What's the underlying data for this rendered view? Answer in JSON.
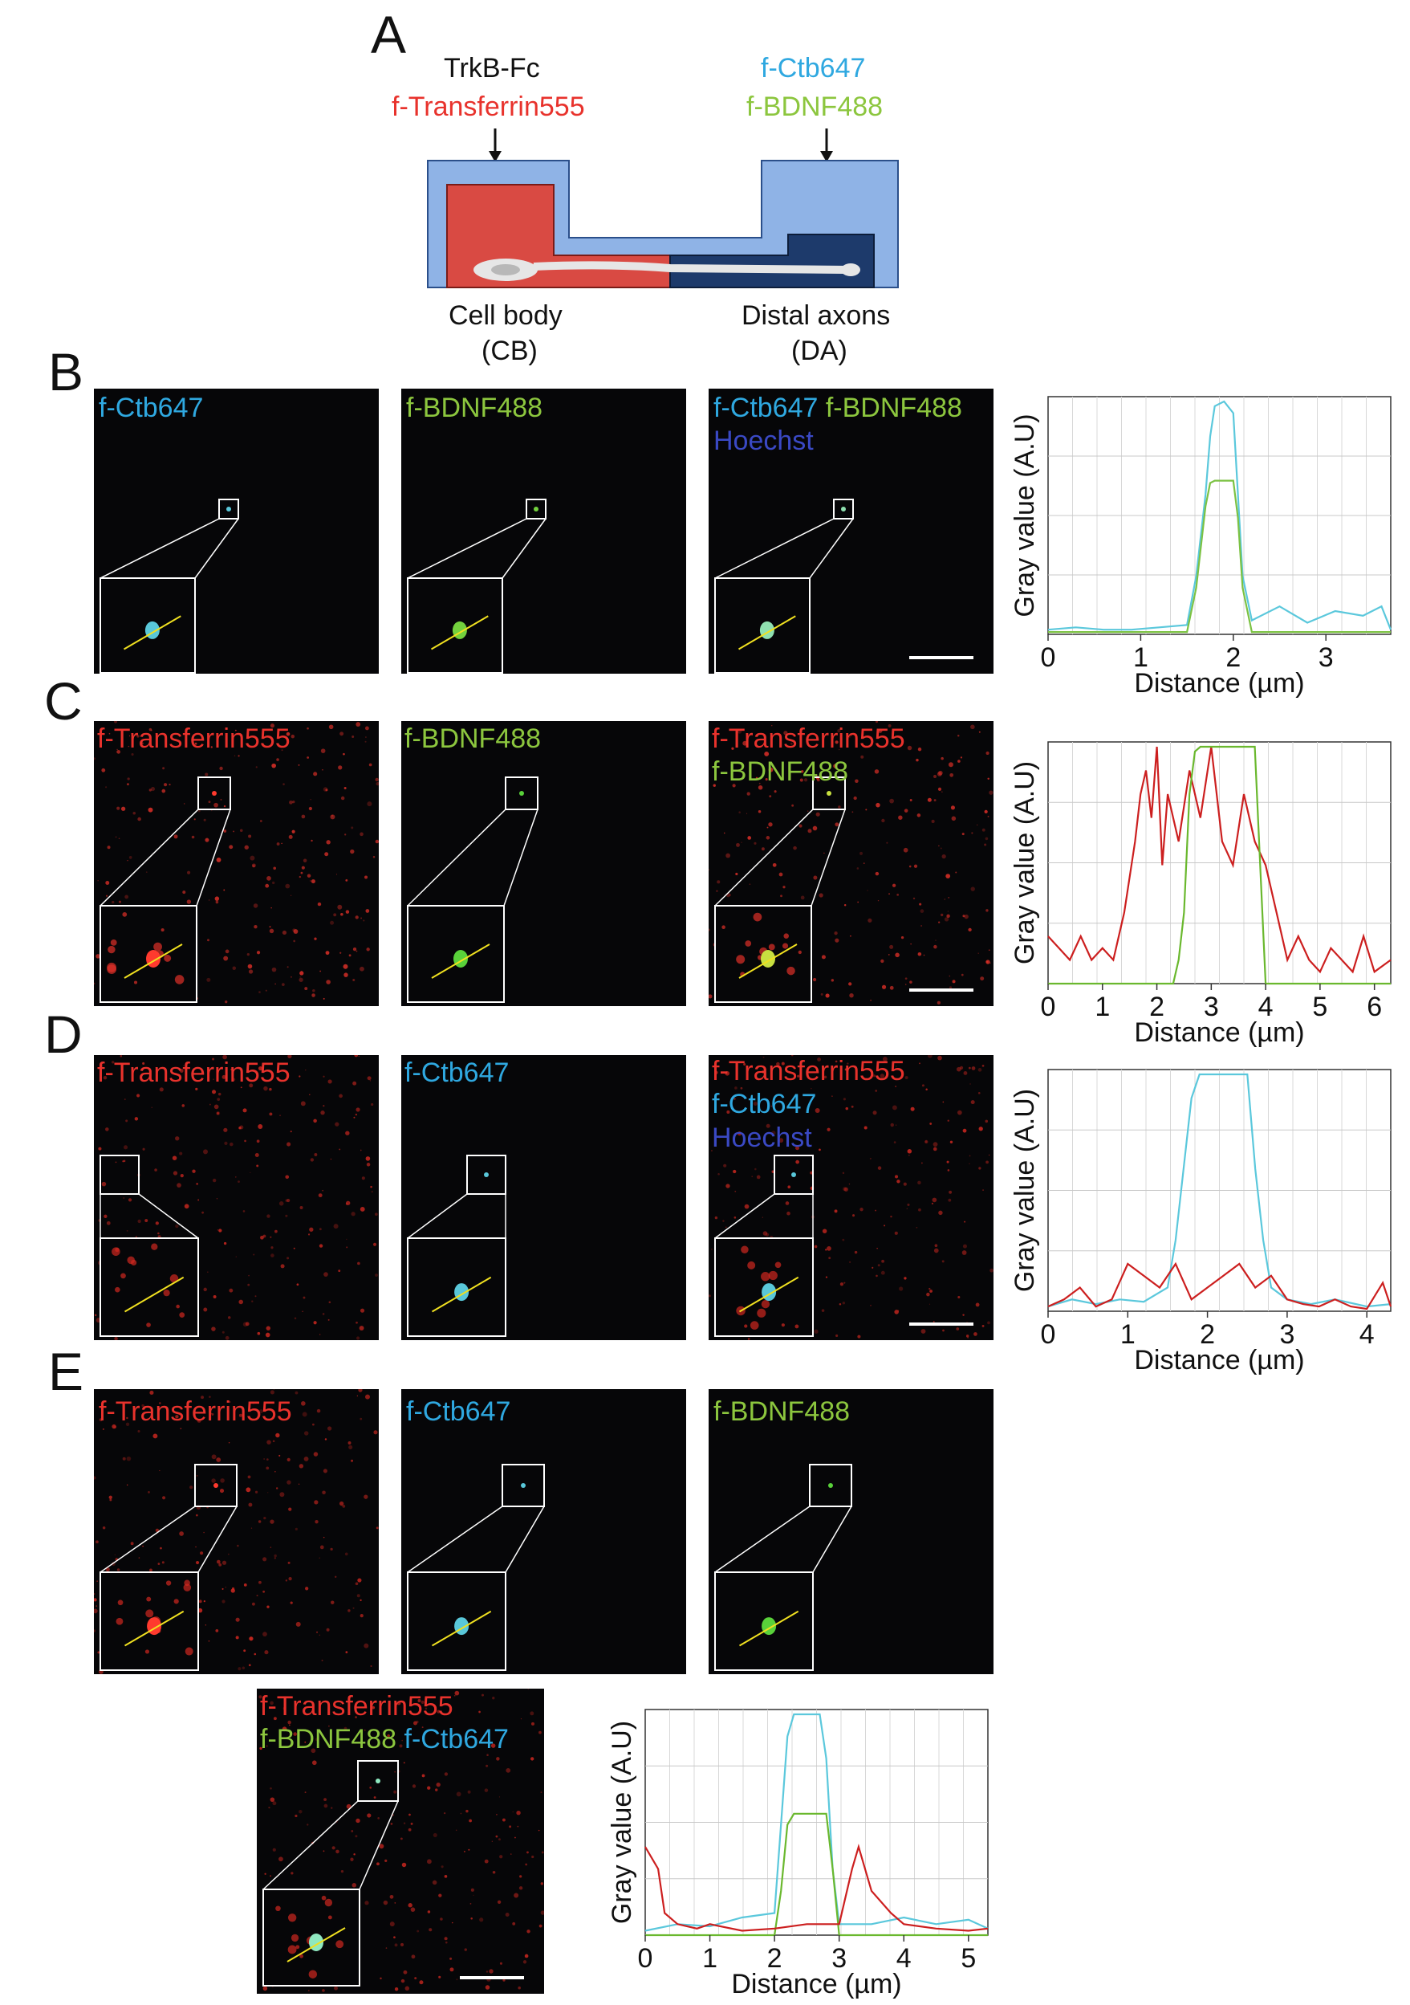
{
  "panels": {
    "A": "A",
    "B": "B",
    "C": "C",
    "D": "D",
    "E": "E"
  },
  "diagram": {
    "left_top": "TrkB-Fc",
    "left_bottom": "f-Transferrin555",
    "right_top": "f-Ctb647",
    "right_bottom": "f-BDNF488",
    "cb_line1": "Cell body",
    "cb_line2": "(CB)",
    "da_line1": "Distal axons",
    "da_line2": "(DA)",
    "colors": {
      "chamber": "#8fb3e6",
      "cb": "#d9534f",
      "da": "#1d3a6b",
      "red_label": "#e8322c",
      "cyan_label": "#2fa8e0",
      "green_label": "#8cc63e"
    }
  },
  "images": {
    "B1": [
      "f-Ctb647"
    ],
    "B2": [
      "f-BDNF488"
    ],
    "B3": [
      "f-Ctb647",
      "f-BDNF488",
      "Hoechst"
    ],
    "C1": [
      "f-Transferrin555"
    ],
    "C2": [
      "f-BDNF488"
    ],
    "C3": [
      "f-Transferrin555",
      "f-BDNF488"
    ],
    "D1": [
      "f-Transferrin555"
    ],
    "D2": [
      "f-Ctb647"
    ],
    "D3": [
      "f-Transferrin555",
      "f-Ctb647",
      "Hoechst"
    ],
    "E1": [
      "f-Transferrin555"
    ],
    "E2": [
      "f-Ctb647"
    ],
    "E3": [
      "f-BDNF488"
    ],
    "E4": [
      "f-Transferrin555",
      "f-BDNF488",
      "f-Ctb647"
    ]
  },
  "chart_data": [
    {
      "id": "B",
      "type": "line",
      "xlabel": "Distance (µm)",
      "ylabel": "Gray value (A.U)",
      "xlim": [
        0,
        3.7
      ],
      "xticks": [
        0,
        1,
        2,
        3
      ],
      "grid": true,
      "series": [
        {
          "color": "#5bc8dc",
          "x": [
            0,
            0.3,
            0.6,
            0.9,
            1.2,
            1.5,
            1.6,
            1.7,
            1.75,
            1.8,
            1.9,
            2.0,
            2.05,
            2.1,
            2.2,
            2.3,
            2.5,
            2.8,
            3.1,
            3.4,
            3.6,
            3.7
          ],
          "y": [
            0.02,
            0.03,
            0.02,
            0.02,
            0.03,
            0.04,
            0.25,
            0.6,
            0.85,
            0.98,
            1.0,
            0.95,
            0.6,
            0.25,
            0.06,
            0.08,
            0.12,
            0.05,
            0.1,
            0.08,
            0.12,
            0.02
          ]
        },
        {
          "color": "#7cc243",
          "x": [
            0,
            1.5,
            1.6,
            1.7,
            1.75,
            1.8,
            2.0,
            2.05,
            2.1,
            2.2,
            3.7
          ],
          "y": [
            0.01,
            0.01,
            0.2,
            0.55,
            0.65,
            0.66,
            0.66,
            0.5,
            0.2,
            0.01,
            0.01
          ]
        }
      ]
    },
    {
      "id": "C",
      "type": "line",
      "xlabel": "Distance (µm)",
      "ylabel": "Gray value (A.U)",
      "xlim": [
        0,
        6.3
      ],
      "xticks": [
        0,
        1,
        2,
        3,
        4,
        5,
        6
      ],
      "grid": true,
      "series": [
        {
          "color": "#cc1f1f",
          "x": [
            0,
            0.2,
            0.4,
            0.6,
            0.8,
            1.0,
            1.2,
            1.4,
            1.6,
            1.7,
            1.8,
            1.9,
            2.0,
            2.1,
            2.2,
            2.4,
            2.6,
            2.8,
            3.0,
            3.2,
            3.4,
            3.6,
            3.8,
            4.0,
            4.2,
            4.4,
            4.6,
            4.8,
            5.0,
            5.2,
            5.4,
            5.6,
            5.8,
            6.0,
            6.3
          ],
          "y": [
            0.2,
            0.15,
            0.1,
            0.2,
            0.1,
            0.15,
            0.1,
            0.3,
            0.6,
            0.8,
            0.9,
            0.7,
            1.0,
            0.5,
            0.8,
            0.6,
            0.9,
            0.7,
            1.0,
            0.6,
            0.5,
            0.8,
            0.6,
            0.5,
            0.3,
            0.1,
            0.2,
            0.1,
            0.05,
            0.15,
            0.1,
            0.05,
            0.2,
            0.05,
            0.1
          ]
        },
        {
          "color": "#6ab82e",
          "x": [
            0,
            2.3,
            2.4,
            2.5,
            2.6,
            2.7,
            2.8,
            3.0,
            3.5,
            3.8,
            3.9,
            4.0,
            6.3
          ],
          "y": [
            0,
            0,
            0.1,
            0.3,
            0.8,
            0.98,
            1.0,
            1.0,
            1.0,
            1.0,
            0.5,
            0,
            0
          ]
        }
      ]
    },
    {
      "id": "D",
      "type": "line",
      "xlabel": "Distance (µm)",
      "ylabel": "Gray value (A.U)",
      "xlim": [
        0,
        4.3
      ],
      "xticks": [
        0,
        1,
        2,
        3,
        4
      ],
      "grid": true,
      "series": [
        {
          "color": "#5bc8dc",
          "x": [
            0,
            0.3,
            0.6,
            0.9,
            1.2,
            1.5,
            1.6,
            1.7,
            1.8,
            1.9,
            2.0,
            2.5,
            2.6,
            2.7,
            2.8,
            3.0,
            3.3,
            3.6,
            4.0,
            4.3
          ],
          "y": [
            0.02,
            0.05,
            0.03,
            0.05,
            0.04,
            0.1,
            0.3,
            0.6,
            0.9,
            1.0,
            1.0,
            1.0,
            0.6,
            0.3,
            0.1,
            0.05,
            0.03,
            0.05,
            0.02,
            0.03
          ]
        },
        {
          "color": "#cc1f1f",
          "x": [
            0,
            0.2,
            0.4,
            0.6,
            0.8,
            1.0,
            1.2,
            1.4,
            1.6,
            1.8,
            2.0,
            2.2,
            2.4,
            2.6,
            2.8,
            3.0,
            3.2,
            3.4,
            3.6,
            3.8,
            4.0,
            4.2,
            4.3
          ],
          "y": [
            0.02,
            0.05,
            0.1,
            0.02,
            0.05,
            0.2,
            0.15,
            0.1,
            0.2,
            0.05,
            0.1,
            0.15,
            0.2,
            0.1,
            0.15,
            0.05,
            0.03,
            0.02,
            0.05,
            0.02,
            0.01,
            0.12,
            0.02
          ]
        }
      ]
    },
    {
      "id": "E",
      "type": "line",
      "xlabel": "Distance (µm)",
      "ylabel": "Gray value (A.U)",
      "xlim": [
        0,
        5.3
      ],
      "xticks": [
        0,
        1,
        2,
        3,
        4,
        5
      ],
      "grid": true,
      "series": [
        {
          "color": "#5bc8dc",
          "x": [
            0,
            0.5,
            1.0,
            1.5,
            2.0,
            2.1,
            2.2,
            2.3,
            2.4,
            2.7,
            2.8,
            2.9,
            3.0,
            3.5,
            4.0,
            4.5,
            5.0,
            5.3
          ],
          "y": [
            0.02,
            0.05,
            0.04,
            0.08,
            0.1,
            0.5,
            0.9,
            1.0,
            1.0,
            1.0,
            0.8,
            0.3,
            0.05,
            0.05,
            0.08,
            0.05,
            0.07,
            0.03
          ]
        },
        {
          "color": "#6ab82e",
          "x": [
            0,
            2.0,
            2.1,
            2.2,
            2.3,
            2.4,
            2.8,
            2.9,
            3.0,
            5.3
          ],
          "y": [
            0,
            0,
            0.2,
            0.5,
            0.55,
            0.55,
            0.55,
            0.3,
            0,
            0
          ]
        },
        {
          "color": "#cc1f1f",
          "x": [
            0,
            0.1,
            0.2,
            0.3,
            0.5,
            0.8,
            1.0,
            1.5,
            2.0,
            2.5,
            3.0,
            3.2,
            3.3,
            3.5,
            3.8,
            4.0,
            4.5,
            5.0,
            5.3
          ],
          "y": [
            0.4,
            0.35,
            0.3,
            0.1,
            0.05,
            0.03,
            0.05,
            0.02,
            0.03,
            0.05,
            0.05,
            0.3,
            0.4,
            0.2,
            0.1,
            0.05,
            0.03,
            0.02,
            0.03
          ]
        }
      ]
    }
  ]
}
